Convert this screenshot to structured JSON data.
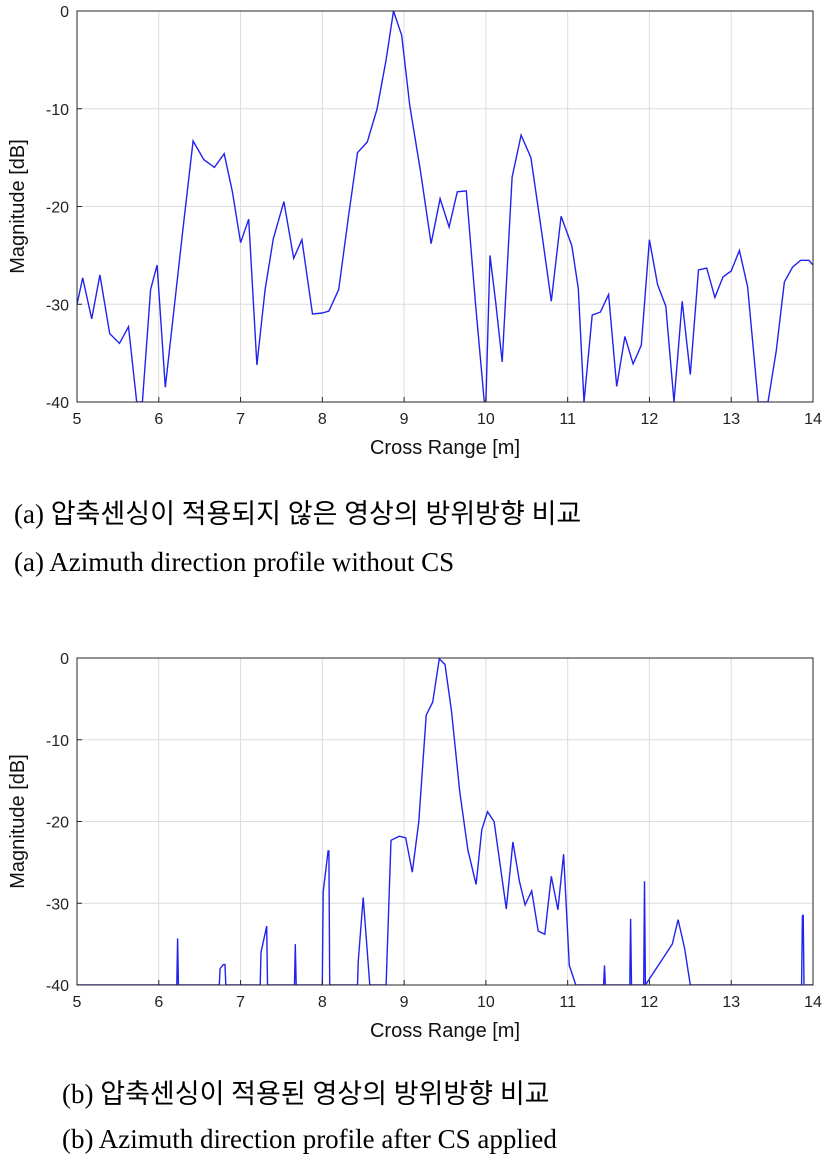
{
  "captions": {
    "a_korean": "(a) 압축센싱이 적용되지 않은 영상의 방위방향 비교",
    "a_english": "(a) Azimuth direction profile without CS",
    "b_korean": "(b) 압축센싱이 적용된 영상의 방위방향 비교",
    "b_english": "(b) Azimuth direction profile after CS applied"
  },
  "chart_data": [
    {
      "type": "line",
      "xlabel": "Cross Range [m]",
      "ylabel": "Magnitude [dB]",
      "xlim": [
        5,
        14
      ],
      "ylim": [
        -40,
        0
      ],
      "xticks": [
        "5",
        "6",
        "7",
        "8",
        "9",
        "10",
        "11",
        "12",
        "13",
        "14"
      ],
      "yticks": [
        "0",
        "-10",
        "-20",
        "-30",
        "-40"
      ],
      "grid": true,
      "line_color": "#2222ee",
      "series": [
        {
          "x": [
            5.0,
            5.07,
            5.18,
            5.28,
            5.4,
            5.52,
            5.63,
            5.73,
            5.8,
            5.9,
            5.98,
            6.08,
            6.2,
            6.3,
            6.42,
            6.55,
            6.68,
            6.8,
            6.9,
            7.0,
            7.1,
            7.2,
            7.3,
            7.4,
            7.53,
            7.65,
            7.75,
            7.88,
            8.0,
            8.08,
            8.2,
            8.32,
            8.43,
            8.55,
            8.67,
            8.78,
            8.87,
            8.97,
            9.07,
            9.2,
            9.33,
            9.44,
            9.55,
            9.65,
            9.76,
            9.87,
            9.98,
            10.0,
            10.05,
            10.12,
            10.2,
            10.32,
            10.43,
            10.55,
            10.68,
            10.8,
            10.92,
            11.05,
            11.13,
            11.2,
            11.3,
            11.4,
            11.5,
            11.6,
            11.7,
            11.8,
            11.9,
            12.0,
            12.1,
            12.2,
            12.3,
            12.4,
            12.5,
            12.6,
            12.7,
            12.8,
            12.9,
            13.0,
            13.1,
            13.2,
            13.33,
            13.45,
            13.55,
            13.65,
            13.75,
            13.85,
            13.95,
            14.0
          ],
          "y": [
            -30,
            -27.3,
            -31.5,
            -27,
            -33,
            -34,
            -32.3,
            -40,
            -40,
            -28.5,
            -26,
            -38.5,
            -29.5,
            -22,
            -13.3,
            -15.2,
            -16,
            -14.6,
            -18.5,
            -23.7,
            -21.3,
            -36.2,
            -28.5,
            -23.3,
            -19.5,
            -25.3,
            -23.4,
            -31,
            -30.9,
            -30.7,
            -28.5,
            -21,
            -14.5,
            -13.4,
            -10,
            -5,
            0,
            -2.5,
            -9.7,
            -16.4,
            -23.8,
            -19.2,
            -22.1,
            -18.5,
            -18.4,
            -29.7,
            -40,
            -40,
            -25,
            -29.8,
            -35.9,
            -17,
            -12.7,
            -15,
            -22.5,
            -29.7,
            -21,
            -24,
            -28.4,
            -40,
            -31.1,
            -30.8,
            -29,
            -38.4,
            -33.3,
            -36.1,
            -34.2,
            -23.4,
            -28,
            -30.2,
            -40,
            -29.7,
            -37.2,
            -26.5,
            -26.3,
            -29.3,
            -27.2,
            -26.6,
            -24.5,
            -28.2,
            -40,
            -40,
            -34.8,
            -27.7,
            -26.2,
            -25.5,
            -25.5,
            -26
          ]
        }
      ]
    },
    {
      "type": "line",
      "xlabel": "Cross Range [m]",
      "ylabel": "Magnitude [dB]",
      "xlim": [
        5,
        14
      ],
      "ylim": [
        -40,
        0
      ],
      "xticks": [
        "5",
        "6",
        "7",
        "8",
        "9",
        "10",
        "11",
        "12",
        "13",
        "14"
      ],
      "yticks": [
        "0",
        "-10",
        "-20",
        "-30",
        "-40"
      ],
      "grid": true,
      "line_color": "#2222ee",
      "series": [
        {
          "x": [
            5.0,
            6.22,
            6.23,
            6.24,
            6.74,
            6.75,
            6.79,
            6.81,
            6.82,
            7.24,
            7.25,
            7.32,
            7.33,
            7.34,
            7.66,
            7.67,
            7.68,
            8.0,
            8.01,
            8.07,
            8.08,
            8.09,
            8.43,
            8.44,
            8.5,
            8.58,
            8.78,
            8.84,
            8.94,
            9.02,
            9.1,
            9.18,
            9.27,
            9.35,
            9.43,
            9.5,
            9.58,
            9.68,
            9.78,
            9.88,
            9.95,
            10.02,
            10.1,
            10.18,
            10.25,
            10.33,
            10.41,
            10.48,
            10.56,
            10.64,
            10.72,
            10.8,
            10.88,
            10.95,
            11.02,
            11.1,
            11.16,
            11.3,
            11.44,
            11.45,
            11.46,
            11.76,
            11.77,
            11.78,
            11.93,
            11.94,
            11.95,
            12.28,
            12.35,
            12.43,
            12.5,
            13.86,
            13.87,
            13.88,
            13.89,
            14.0
          ],
          "y": [
            -40,
            -40,
            -34.3,
            -40,
            -40,
            -38,
            -37.5,
            -37.5,
            -40,
            -40,
            -36,
            -32.8,
            -40,
            -40,
            -40,
            -35,
            -40,
            -40,
            -28.6,
            -23.6,
            -23.6,
            -40,
            -40,
            -37,
            -29.3,
            -40,
            -40,
            -22.3,
            -21.8,
            -22,
            -26.2,
            -20,
            -7,
            -5.4,
            -0.1,
            -0.8,
            -6.5,
            -16.3,
            -23.5,
            -27.7,
            -21,
            -18.8,
            -20,
            -25.7,
            -30.7,
            -22.5,
            -27.3,
            -30.2,
            -28.5,
            -33.4,
            -33.8,
            -26.7,
            -30.8,
            -24,
            -37.6,
            -40,
            -40,
            -40,
            -40,
            -37.6,
            -40,
            -40,
            -31.9,
            -40,
            -40,
            -27.3,
            -40,
            -35,
            -32,
            -35.5,
            -40,
            -40,
            -31.6,
            -31.4,
            -40,
            -40
          ]
        }
      ]
    }
  ]
}
